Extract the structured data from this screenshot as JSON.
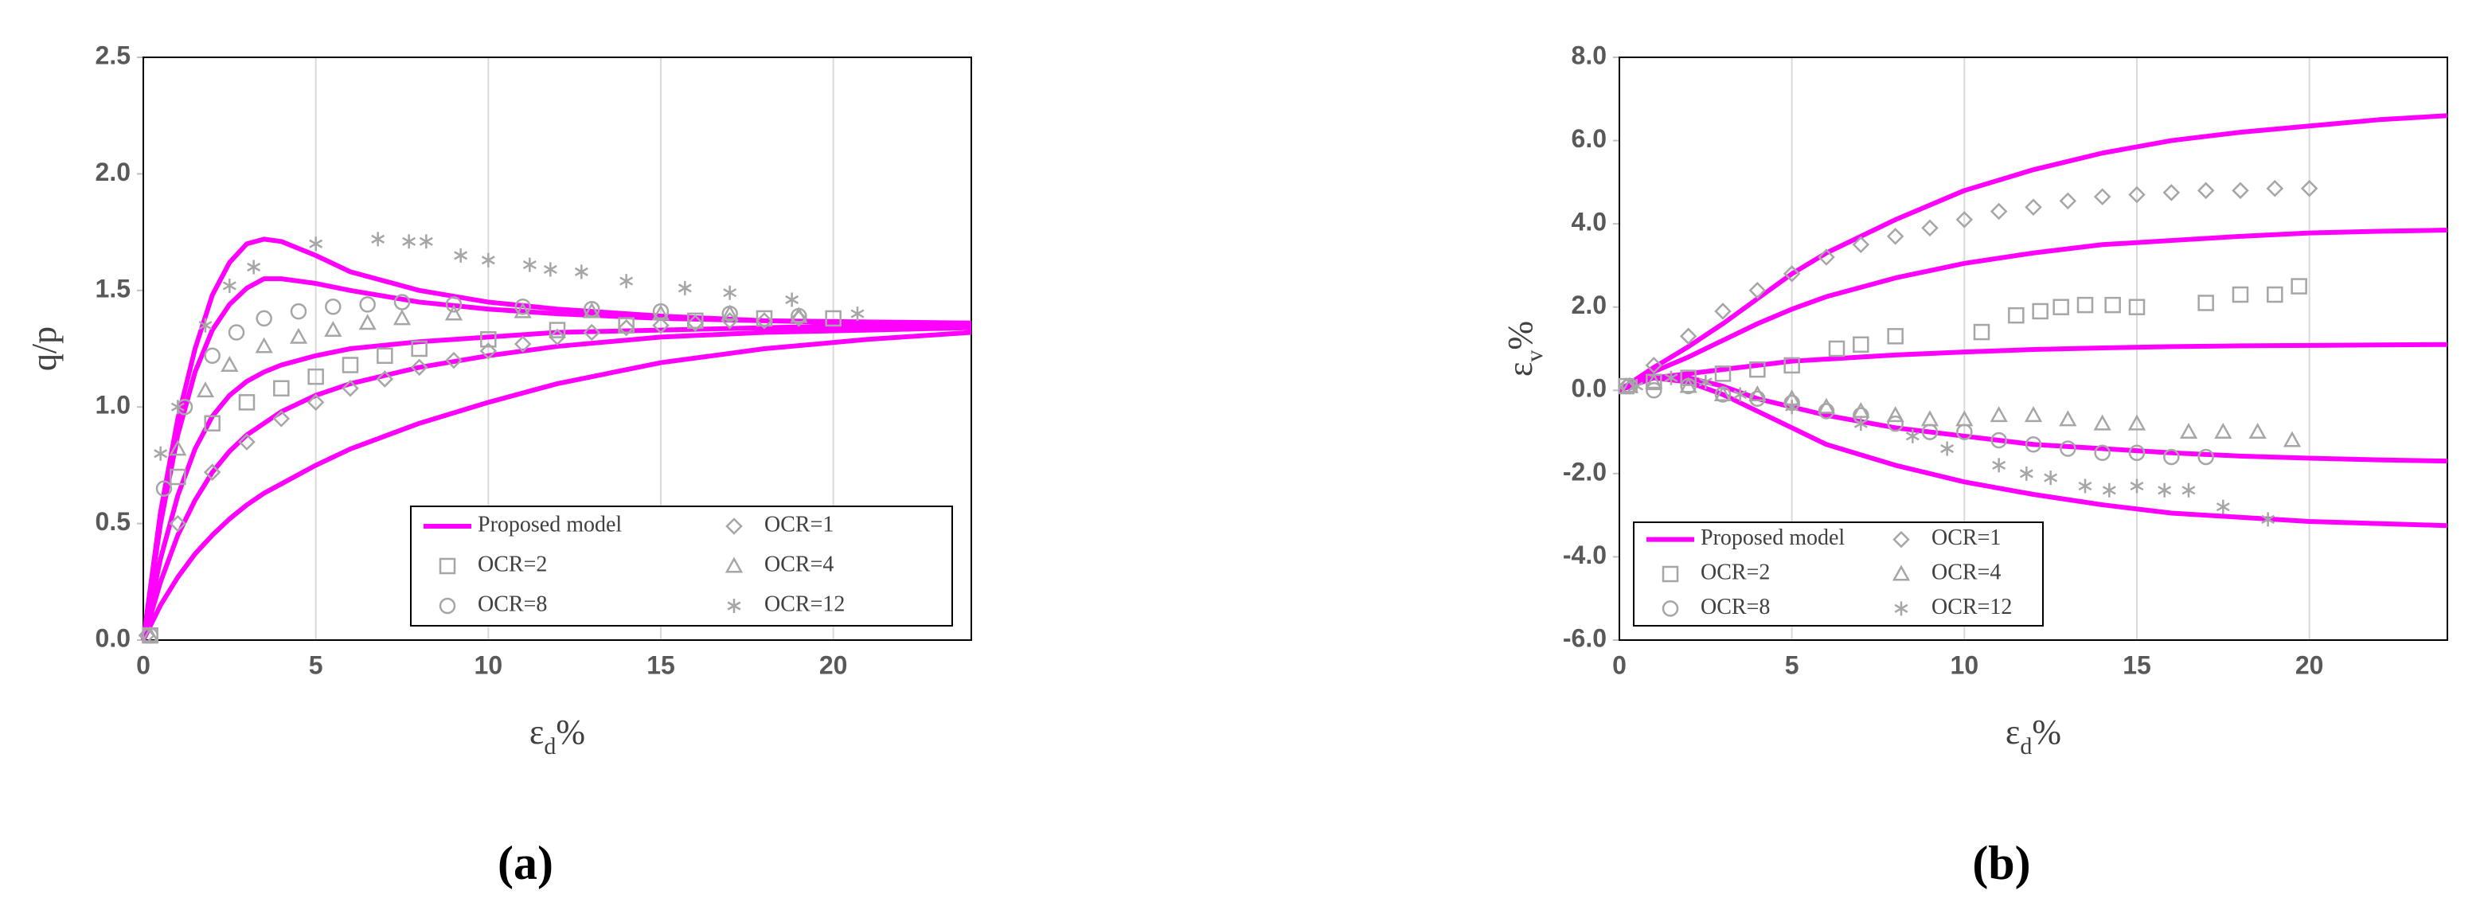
{
  "chart_data": [
    {
      "type": "scatter",
      "label": "(a)",
      "xlabel": [
        "ε",
        "d",
        "%"
      ],
      "ylabel": [
        "q/p"
      ],
      "xlim": [
        0,
        24
      ],
      "xticks": [
        0,
        5,
        10,
        15,
        20
      ],
      "ylim": [
        0,
        2.5
      ],
      "yticks": [
        {
          "value": 0,
          "label": "0.0"
        },
        {
          "value": 0.5,
          "label": "0.5"
        },
        {
          "value": 1,
          "label": "1.0"
        },
        {
          "value": 1.5,
          "label": "1.5"
        },
        {
          "value": 2,
          "label": "2.0"
        },
        {
          "value": 2.5,
          "label": "2.5"
        }
      ],
      "grid": true,
      "series": [
        {
          "name": "Proposed model",
          "color": "#ff00ff",
          "marker": "line",
          "x": [
            0,
            0.5,
            1,
            1.5,
            2,
            2.5,
            3,
            3.5,
            4,
            5,
            6,
            8,
            10,
            12,
            15,
            18,
            21,
            24,
            null,
            0,
            0.5,
            1,
            1.5,
            2,
            2.5,
            3,
            3.5,
            4,
            5,
            6,
            8,
            10,
            12,
            15,
            18,
            21,
            24,
            null,
            0,
            0.5,
            1,
            1.5,
            2,
            2.5,
            3,
            3.5,
            4,
            5,
            6,
            8,
            10,
            12,
            15,
            18,
            21,
            24,
            null,
            0,
            0.5,
            1,
            1.5,
            2,
            2.5,
            3,
            3.5,
            4,
            5,
            6,
            8,
            10,
            12,
            15,
            18,
            21,
            24,
            null,
            0,
            0.5,
            1,
            1.5,
            2,
            2.5,
            3,
            3.5,
            4,
            5,
            6,
            8,
            10,
            12,
            15,
            18,
            21,
            24
          ],
          "values": [
            0,
            0.55,
            0.95,
            1.25,
            1.48,
            1.62,
            1.7,
            1.72,
            1.71,
            1.65,
            1.58,
            1.5,
            1.45,
            1.42,
            1.39,
            1.37,
            1.365,
            1.36,
            null,
            0,
            0.5,
            0.88,
            1.15,
            1.33,
            1.44,
            1.51,
            1.55,
            1.55,
            1.53,
            1.5,
            1.45,
            1.42,
            1.4,
            1.38,
            1.37,
            1.36,
            1.36,
            null,
            0,
            0.35,
            0.62,
            0.82,
            0.96,
            1.05,
            1.11,
            1.15,
            1.18,
            1.22,
            1.25,
            1.28,
            1.3,
            1.32,
            1.33,
            1.34,
            1.35,
            1.35,
            null,
            0,
            0.25,
            0.45,
            0.6,
            0.72,
            0.81,
            0.88,
            0.93,
            0.98,
            1.05,
            1.1,
            1.17,
            1.22,
            1.26,
            1.3,
            1.32,
            1.33,
            1.34,
            null,
            0,
            0.15,
            0.27,
            0.37,
            0.45,
            0.52,
            0.58,
            0.63,
            0.67,
            0.75,
            0.82,
            0.93,
            1.02,
            1.1,
            1.19,
            1.25,
            1.29,
            1.32
          ]
        },
        {
          "name": "OCR=1",
          "color": "#a6a6a6",
          "marker": "diamond",
          "x": [
            0.1,
            1,
            2,
            3,
            4,
            5,
            6,
            7,
            8,
            9,
            10,
            11,
            12,
            13,
            14,
            15,
            16,
            17,
            18,
            19
          ],
          "values": [
            0.02,
            0.5,
            0.72,
            0.85,
            0.95,
            1.02,
            1.08,
            1.12,
            1.17,
            1.2,
            1.24,
            1.27,
            1.3,
            1.32,
            1.34,
            1.35,
            1.36,
            1.37,
            1.37,
            1.38
          ]
        },
        {
          "name": "OCR=2",
          "color": "#a6a6a6",
          "marker": "square",
          "x": [
            0.2,
            1,
            2,
            3,
            4,
            5,
            6,
            7,
            8,
            10,
            12,
            14,
            16,
            18,
            20
          ],
          "values": [
            0.02,
            0.7,
            0.93,
            1.02,
            1.08,
            1.13,
            1.18,
            1.22,
            1.25,
            1.29,
            1.33,
            1.35,
            1.37,
            1.38,
            1.38
          ]
        },
        {
          "name": "OCR=4",
          "color": "#a6a6a6",
          "marker": "triangle",
          "x": [
            0.2,
            1,
            1.8,
            2.5,
            3.5,
            4.5,
            5.5,
            6.5,
            7.5,
            9,
            11,
            13,
            15,
            17,
            19
          ],
          "values": [
            0.02,
            0.82,
            1.07,
            1.18,
            1.26,
            1.3,
            1.33,
            1.36,
            1.38,
            1.4,
            1.41,
            1.41,
            1.4,
            1.4,
            1.39
          ]
        },
        {
          "name": "OCR=8",
          "color": "#a6a6a6",
          "marker": "circle",
          "x": [
            0.2,
            0.6,
            1.2,
            2,
            2.7,
            3.5,
            4.5,
            5.5,
            6.5,
            7.5,
            9,
            11,
            13,
            15,
            17,
            19
          ],
          "values": [
            0.02,
            0.65,
            1,
            1.22,
            1.32,
            1.38,
            1.41,
            1.43,
            1.44,
            1.45,
            1.44,
            1.43,
            1.42,
            1.41,
            1.4,
            1.39
          ]
        },
        {
          "name": "OCR=12",
          "color": "#a6a6a6",
          "marker": "asterisk",
          "x": [
            0.5,
            1,
            1.8,
            2.5,
            3.2,
            5,
            6.8,
            7.7,
            8.2,
            9.2,
            10,
            11.2,
            11.8,
            12.7,
            14,
            15.7,
            17,
            18.8,
            20.7
          ],
          "values": [
            0.8,
            1,
            1.35,
            1.52,
            1.6,
            1.7,
            1.72,
            1.71,
            1.71,
            1.65,
            1.63,
            1.61,
            1.59,
            1.58,
            1.54,
            1.51,
            1.49,
            1.46,
            1.4
          ]
        }
      ]
    },
    {
      "type": "scatter",
      "label": "(b)",
      "xlabel": [
        "ε",
        "d",
        "%"
      ],
      "ylabel": [
        "ε",
        "v",
        "%"
      ],
      "xlim": [
        0,
        24
      ],
      "xticks": [
        0,
        5,
        10,
        15,
        20
      ],
      "ylim": [
        -6,
        8
      ],
      "yticks": [
        {
          "value": -6,
          "label": "-6.0"
        },
        {
          "value": -4,
          "label": "-4.0"
        },
        {
          "value": -2,
          "label": "-2.0"
        },
        {
          "value": 0,
          "label": "0.0"
        },
        {
          "value": 2,
          "label": "2.0"
        },
        {
          "value": 4,
          "label": "4.0"
        },
        {
          "value": 6,
          "label": "6.0"
        },
        {
          "value": 8,
          "label": "8.0"
        }
      ],
      "grid": true,
      "series": [
        {
          "name": "Proposed model",
          "color": "#ff00ff",
          "marker": "line",
          "x": [
            0,
            1,
            2,
            3,
            4,
            5,
            6,
            8,
            10,
            12,
            14,
            16,
            18,
            20,
            22,
            24,
            null,
            0,
            1,
            2,
            3,
            4,
            5,
            6,
            8,
            10,
            12,
            14,
            16,
            18,
            20,
            22,
            24,
            null,
            0,
            1,
            2,
            3,
            4,
            5,
            6,
            8,
            10,
            12,
            14,
            16,
            18,
            20,
            22,
            24,
            null,
            0,
            1,
            2,
            3,
            4,
            5,
            6,
            8,
            10,
            12,
            14,
            16,
            18,
            20,
            22,
            24,
            null,
            0,
            1,
            2,
            3,
            4,
            5,
            6,
            8,
            10,
            12,
            14,
            16,
            18,
            20,
            22,
            24
          ],
          "values": [
            0,
            0.55,
            1.05,
            1.6,
            2.2,
            2.8,
            3.3,
            4.1,
            4.8,
            5.3,
            5.7,
            6,
            6.2,
            6.35,
            6.5,
            6.6,
            null,
            0,
            0.45,
            0.8,
            1.2,
            1.6,
            1.95,
            2.25,
            2.7,
            3.05,
            3.3,
            3.5,
            3.6,
            3.7,
            3.78,
            3.82,
            3.85,
            null,
            0,
            0.3,
            0.4,
            0.5,
            0.6,
            0.7,
            0.75,
            0.85,
            0.92,
            0.98,
            1.02,
            1.05,
            1.07,
            1.08,
            1.09,
            1.1,
            null,
            0,
            0.3,
            0.3,
            0.1,
            -0.2,
            -0.4,
            -0.6,
            -0.9,
            -1.1,
            -1.3,
            -1.4,
            -1.5,
            -1.58,
            -1.63,
            -1.67,
            -1.7,
            null,
            0,
            0.3,
            0.2,
            -0.1,
            -0.5,
            -0.9,
            -1.3,
            -1.8,
            -2.2,
            -2.5,
            -2.75,
            -2.95,
            -3.05,
            -3.15,
            -3.2,
            -3.25
          ]
        },
        {
          "name": "OCR=1",
          "color": "#a6a6a6",
          "marker": "diamond",
          "x": [
            0.2,
            1,
            2,
            3,
            4,
            5,
            6,
            7,
            8,
            9,
            10,
            11,
            12,
            13,
            14,
            15,
            16,
            17,
            18,
            19,
            20
          ],
          "values": [
            0.1,
            0.6,
            1.3,
            1.9,
            2.4,
            2.8,
            3.2,
            3.5,
            3.7,
            3.9,
            4.1,
            4.3,
            4.4,
            4.55,
            4.65,
            4.7,
            4.75,
            4.8,
            4.8,
            4.85,
            4.85
          ]
        },
        {
          "name": "OCR=2",
          "color": "#a6a6a6",
          "marker": "square",
          "x": [
            0.2,
            1,
            2,
            3,
            4,
            5,
            6.3,
            7,
            8,
            10.5,
            11.5,
            12.2,
            12.8,
            13.5,
            14.3,
            15,
            17,
            18,
            19,
            19.7
          ],
          "values": [
            0.1,
            0.2,
            0.3,
            0.4,
            0.5,
            0.6,
            1,
            1.1,
            1.3,
            1.4,
            1.8,
            1.9,
            2,
            2.05,
            2.05,
            2,
            2.1,
            2.3,
            2.3,
            2.5
          ]
        },
        {
          "name": "OCR=4",
          "color": "#a6a6a6",
          "marker": "triangle",
          "x": [
            0.3,
            1,
            2,
            3,
            4,
            5,
            6,
            7,
            8,
            9,
            10,
            11,
            12,
            13,
            14,
            15,
            16.5,
            17.5,
            18.5,
            19.5
          ],
          "values": [
            0.1,
            0.2,
            0.1,
            -0.1,
            -0.1,
            -0.2,
            -0.4,
            -0.5,
            -0.6,
            -0.7,
            -0.7,
            -0.6,
            -0.6,
            -0.7,
            -0.8,
            -0.8,
            -1,
            -1,
            -1,
            -1.2
          ]
        },
        {
          "name": "OCR=8",
          "color": "#a6a6a6",
          "marker": "circle",
          "x": [
            0.3,
            1,
            2,
            3,
            4,
            5,
            6,
            7,
            8,
            9,
            10,
            11,
            12,
            13,
            14,
            15,
            16,
            17
          ],
          "values": [
            0.1,
            0,
            0.1,
            -0.1,
            -0.2,
            -0.3,
            -0.5,
            -0.6,
            -0.8,
            -1,
            -1,
            -1.2,
            -1.3,
            -1.4,
            -1.5,
            -1.5,
            -1.6,
            -1.6
          ]
        },
        {
          "name": "OCR=12",
          "color": "#a6a6a6",
          "marker": "asterisk",
          "x": [
            0.5,
            1.5,
            2.5,
            3.5,
            5,
            7,
            8.5,
            9.5,
            11,
            11.8,
            12.5,
            13.5,
            14.2,
            15,
            15.8,
            16.5,
            17.5,
            18.8
          ],
          "values": [
            0.1,
            0.3,
            0.2,
            -0.1,
            -0.4,
            -0.8,
            -1.1,
            -1.4,
            -1.8,
            -2,
            -2.1,
            -2.3,
            -2.4,
            -2.3,
            -2.4,
            -2.4,
            -2.8,
            -3.1
          ]
        }
      ]
    }
  ]
}
